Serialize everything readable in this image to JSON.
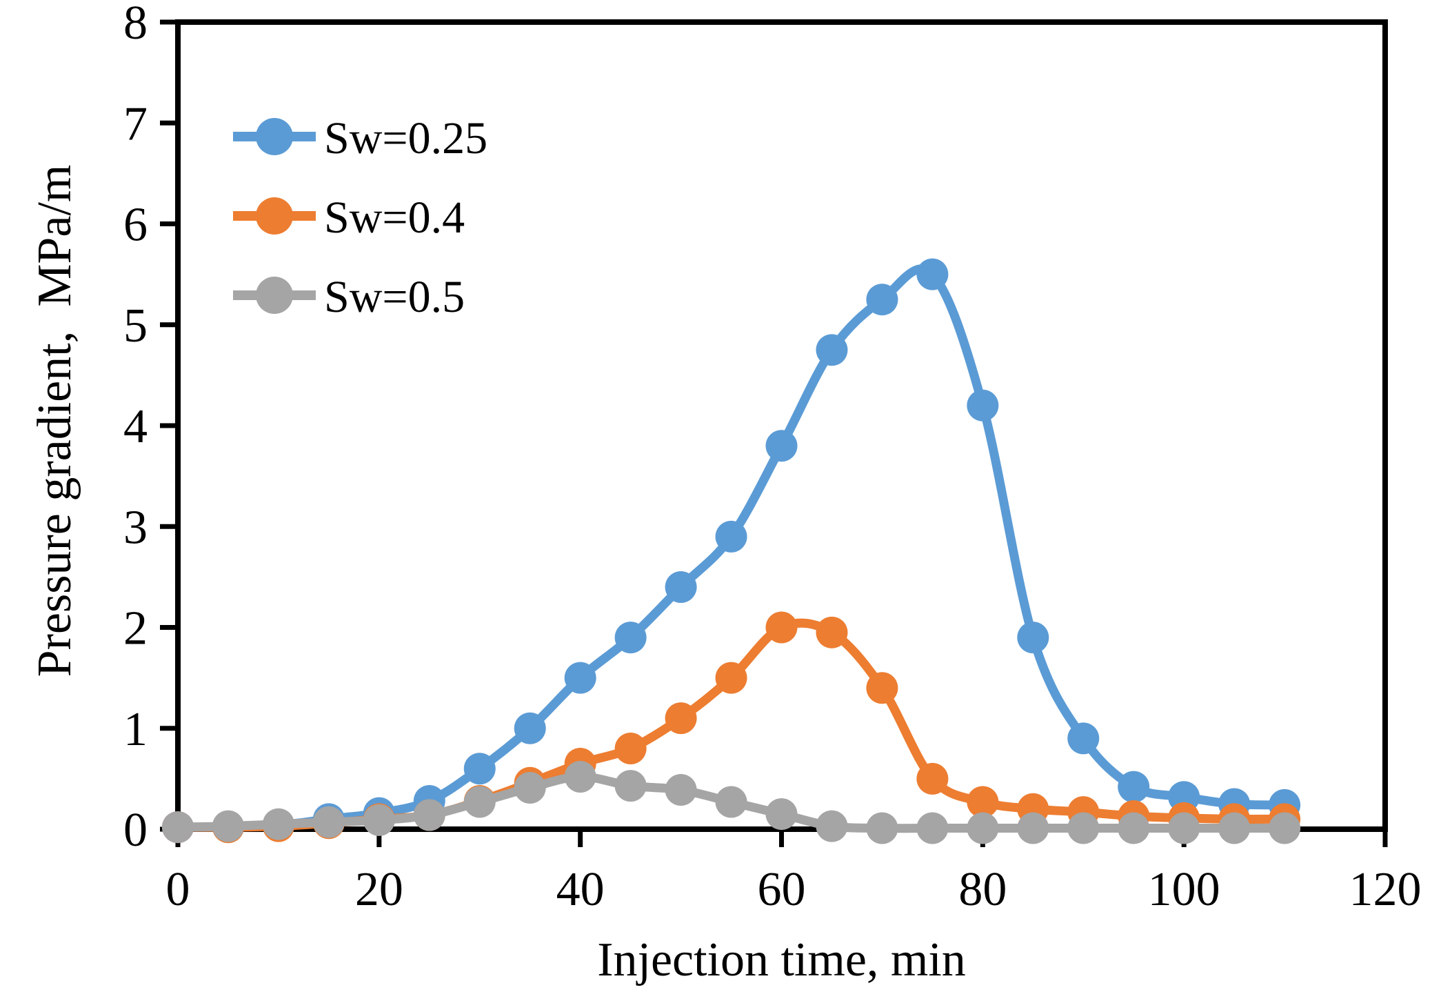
{
  "chart_data": {
    "type": "line",
    "title": "",
    "xlabel": "Injection time, min",
    "ylabel": "Pressure gradient,  MPa/m",
    "xlim": [
      0,
      120
    ],
    "ylim": [
      0,
      8
    ],
    "x_ticks": [
      0,
      20,
      40,
      60,
      80,
      100,
      120
    ],
    "y_ticks": [
      0,
      1,
      2,
      3,
      4,
      5,
      6,
      7,
      8
    ],
    "grid": false,
    "legend_position": "top-left-inside",
    "marker_style": "filled-circle-on-line",
    "axis_color": "#000000",
    "background_color": "#ffffff",
    "x": [
      0,
      5,
      10,
      15,
      20,
      25,
      30,
      35,
      40,
      45,
      50,
      55,
      60,
      65,
      70,
      75,
      80,
      85,
      90,
      95,
      100,
      105,
      110
    ],
    "series": [
      {
        "name": "Sw=0.25",
        "color": "#5B9BD5",
        "values": [
          0.02,
          0.02,
          0.04,
          0.1,
          0.16,
          0.28,
          0.6,
          1.0,
          1.5,
          1.9,
          2.4,
          2.9,
          3.8,
          4.75,
          5.25,
          5.5,
          4.2,
          1.9,
          0.9,
          0.42,
          0.32,
          0.25,
          0.24
        ]
      },
      {
        "name": "Sw=0.4",
        "color": "#ED7D31",
        "values": [
          0.02,
          0.02,
          0.03,
          0.06,
          0.1,
          0.14,
          0.28,
          0.46,
          0.65,
          0.8,
          1.1,
          1.5,
          2.0,
          1.95,
          1.4,
          0.5,
          0.27,
          0.2,
          0.17,
          0.13,
          0.11,
          0.1,
          0.1
        ]
      },
      {
        "name": "Sw=0.5",
        "color": "#A5A5A5",
        "values": [
          0.02,
          0.03,
          0.05,
          0.07,
          0.09,
          0.14,
          0.27,
          0.41,
          0.52,
          0.43,
          0.39,
          0.27,
          0.15,
          0.03,
          0.01,
          0.01,
          0.01,
          0.01,
          0.01,
          0.01,
          0.01,
          0.01,
          0.01
        ]
      }
    ]
  }
}
